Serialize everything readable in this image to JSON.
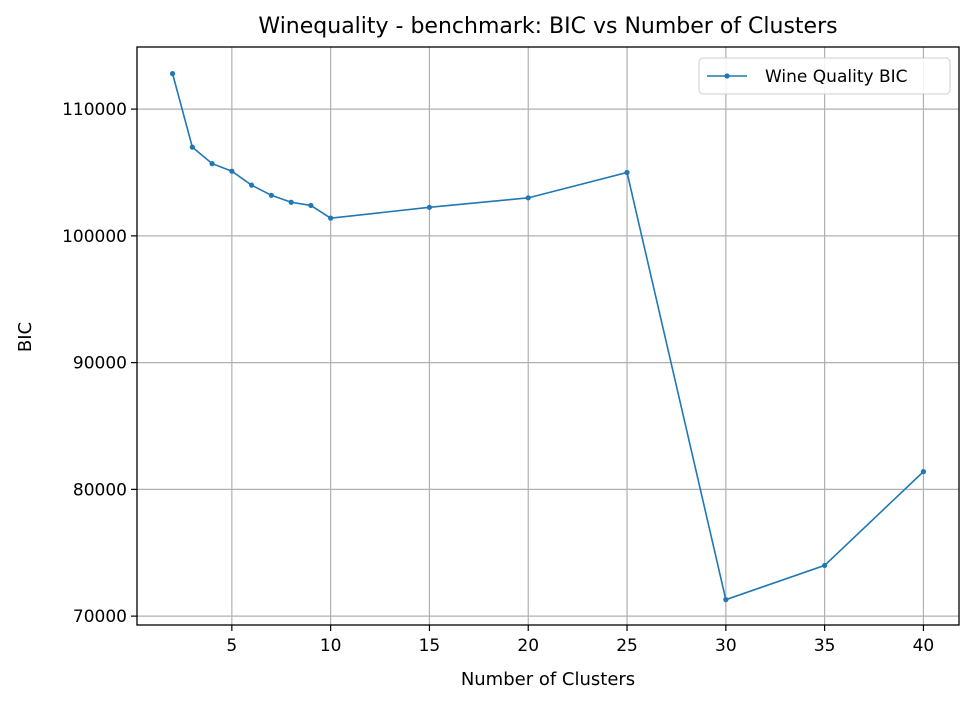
{
  "chart_data": {
    "type": "line",
    "title": "Winequality - benchmark: BIC vs Number of Clusters",
    "xlabel": "Number of Clusters",
    "ylabel": "BIC",
    "xlim": [
      0.2,
      41.8
    ],
    "ylim": [
      69300,
      114900
    ],
    "xticks": [
      5,
      10,
      15,
      20,
      25,
      30,
      35,
      40
    ],
    "yticks": [
      70000,
      80000,
      90000,
      100000,
      110000
    ],
    "grid": true,
    "legend_position": "top-right",
    "series": [
      {
        "name": "Wine Quality BIC",
        "color": "#1f77b4",
        "x": [
          2,
          3,
          4,
          5,
          6,
          7,
          8,
          9,
          10,
          15,
          20,
          25,
          30,
          35,
          40
        ],
        "y": [
          112800,
          107000,
          105700,
          105100,
          104000,
          103200,
          102650,
          102400,
          101400,
          102250,
          103000,
          105000,
          71300,
          74000,
          81400
        ]
      }
    ]
  }
}
